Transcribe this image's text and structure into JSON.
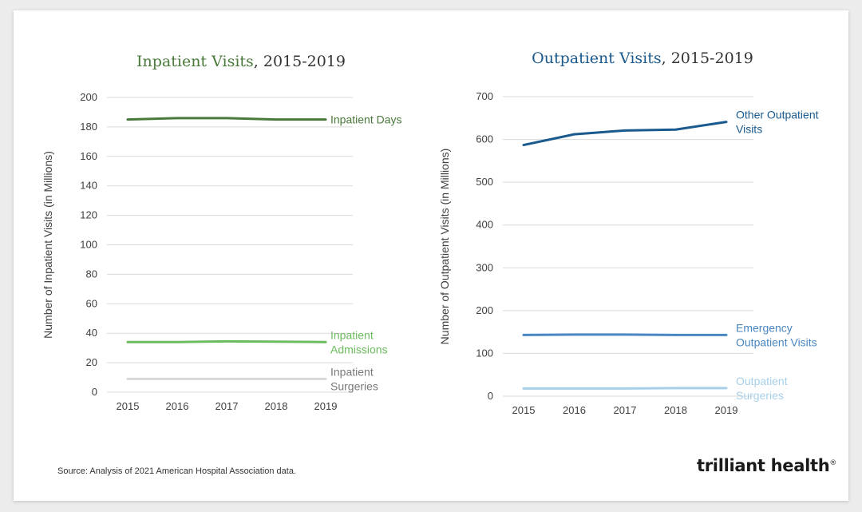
{
  "source_text": "Source: Analysis of 2021 American Hospital Association data.",
  "logo_text": "trilliant health",
  "chart_data": [
    {
      "type": "line",
      "title_main": "Inpatient Visits",
      "title_rest": ", 2015-2019",
      "title_color": "#4a7a3a",
      "xlabel": "",
      "ylabel": "Number of Inpatient Visits (in Millions)",
      "ylim": [
        0,
        200
      ],
      "yticks": [
        0,
        20,
        40,
        60,
        80,
        100,
        120,
        140,
        160,
        180,
        200
      ],
      "grid": true,
      "x": [
        "2015",
        "2016",
        "2017",
        "2018",
        "2019"
      ],
      "series": [
        {
          "name": "Inpatient Days",
          "name_lines": [
            "Inpatient Days"
          ],
          "color": "#4a7a3a",
          "values": [
            185,
            186,
            186,
            185,
            185
          ]
        },
        {
          "name": "Inpatient Admissions",
          "name_lines": [
            "Inpatient",
            "Admissions"
          ],
          "color": "#6cbb5e",
          "values": [
            34,
            34,
            34.5,
            34.3,
            34
          ]
        },
        {
          "name": "Inpatient Surgeries",
          "name_lines": [
            "Inpatient",
            "Surgeries"
          ],
          "color": "#d9d9d9",
          "values": [
            9,
            9,
            9,
            9,
            9
          ]
        }
      ]
    },
    {
      "type": "line",
      "title_main": "Outpatient Visits",
      "title_rest": ", 2015-2019",
      "title_color": "#1a5a8e",
      "xlabel": "",
      "ylabel": "Number of Outpatient Visits (in Millions)",
      "ylim": [
        0,
        700
      ],
      "yticks": [
        0,
        100,
        200,
        300,
        400,
        500,
        600,
        700
      ],
      "grid": true,
      "x": [
        "2015",
        "2016",
        "2017",
        "2018",
        "2019"
      ],
      "series": [
        {
          "name": "Other Outpatient Visits",
          "name_lines": [
            "Other Outpatient",
            "Visits"
          ],
          "color": "#1a5a8e",
          "values": [
            587,
            612,
            621,
            623,
            641
          ]
        },
        {
          "name": "Emergency Outpatient Visits",
          "name_lines": [
            "Emergency",
            "Outpatient Visits"
          ],
          "color": "#4a86c0",
          "values": [
            143,
            144,
            144,
            143,
            143
          ]
        },
        {
          "name": "Outpatient Surgeries",
          "name_lines": [
            "Outpatient",
            "Surgeries"
          ],
          "color": "#a7cfe8",
          "values": [
            18,
            18,
            18,
            19,
            19
          ]
        }
      ]
    }
  ]
}
